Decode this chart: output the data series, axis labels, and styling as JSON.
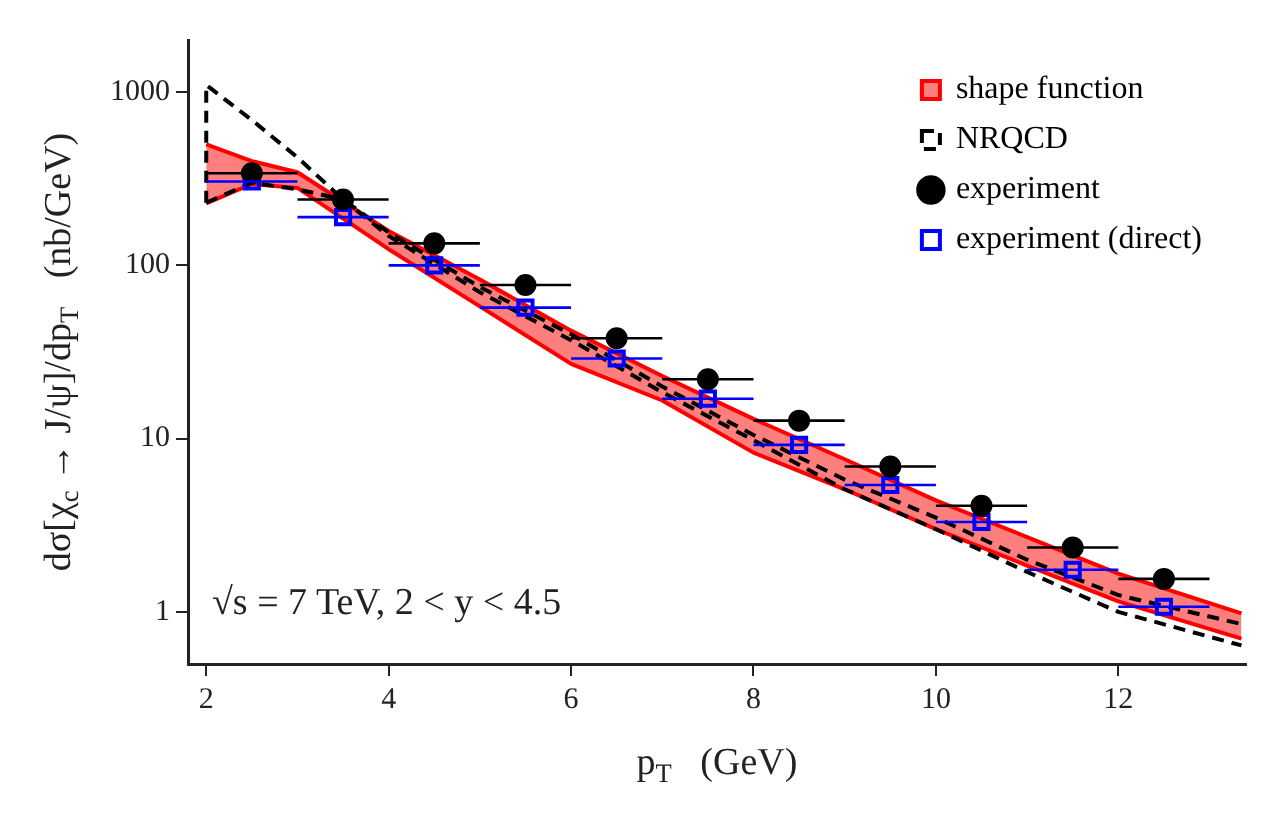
{
  "chart_data": {
    "type": "line",
    "xlabel": "p$_{T}$   (GeV)",
    "ylabel": "dσ[χ$_{c}$ → J/ψ]/dp$_{T}$   (nb/GeV)",
    "log": "y",
    "xlim": [
      1.8,
      13.4
    ],
    "xticks": [
      2,
      4,
      6,
      8,
      10,
      12
    ],
    "ylim": [
      0.5,
      2000
    ],
    "yticks": [
      1,
      10,
      100,
      1000
    ],
    "grid": false,
    "legend": "top right",
    "annotations": [
      "√s = 7 TeV, 2 < y < 4.5"
    ],
    "series": [
      {
        "name": "shape function",
        "color": "#ff0000",
        "x": [
          2,
          2.5,
          3,
          4,
          5,
          6,
          7,
          8,
          9,
          10,
          11,
          12,
          13.35
        ],
        "values": [
          500,
          400,
          345,
          158,
          83,
          42,
          23,
          13,
          7.6,
          4.4,
          2.7,
          1.66,
          0.98
        ]
      },
      {
        "color": "#ff0000",
        "x": [
          2,
          2.5,
          3,
          4,
          5,
          6,
          7,
          8,
          9,
          10,
          11,
          12,
          13.35
        ],
        "values": [
          228,
          295,
          280,
          124,
          58,
          27,
          16.6,
          8.3,
          5.1,
          3.0,
          1.85,
          1.15,
          0.7
        ]
      },
      {
        "name": "NRQCD",
        "color": "#000000",
        "line_style": "dashed",
        "x": [
          2,
          2,
          2.5,
          3,
          3.5,
          4,
          5,
          6,
          7,
          8,
          9,
          10,
          11,
          12,
          13.35
        ],
        "values": [
          230,
          1100,
          690,
          420,
          240,
          155,
          75,
          40,
          20,
          10.5,
          5.8,
          3.5,
          2.0,
          1.25,
          0.85
        ]
      },
      {
        "color": "#000000",
        "line_style": "dashed",
        "x": [
          2,
          2.5,
          3,
          3.5,
          4,
          5,
          6,
          7,
          8,
          9,
          10,
          11,
          12,
          13.35
        ],
        "values": [
          230,
          300,
          275,
          240,
          148,
          70,
          37,
          18.5,
          9.8,
          5.1,
          3.0,
          1.7,
          1.0,
          0.64
        ]
      },
      {
        "name": "experiment",
        "type": "scatter",
        "color": "#000000",
        "marker": "circle",
        "x": [
          2.5,
          3.5,
          4.5,
          5.5,
          6.5,
          7.5,
          8.5,
          9.5,
          10.5,
          11.5,
          12.5
        ],
        "values": [
          340,
          240,
          134,
          77,
          38,
          22,
          12.7,
          6.9,
          4.1,
          2.35,
          1.55
        ],
        "xerrors": [
          0.5,
          0.5,
          0.5,
          0.5,
          0.5,
          0.5,
          0.5,
          0.5,
          0.5,
          0.5,
          0.5
        ]
      },
      {
        "name": "experiment (direct)",
        "type": "scatter",
        "color": "#0000ff",
        "marker": "square",
        "x": [
          2.5,
          3.5,
          4.5,
          5.5,
          6.5,
          7.5,
          8.5,
          9.5,
          10.5,
          11.5,
          12.5
        ],
        "values": [
          305,
          190,
          100,
          57,
          29,
          17,
          9.2,
          5.4,
          3.3,
          1.75,
          1.07
        ],
        "xerrors": [
          0.5,
          0.5,
          0.5,
          0.5,
          0.5,
          0.5,
          0.5,
          0.5,
          0.5,
          0.5,
          0.5
        ]
      }
    ]
  }
}
